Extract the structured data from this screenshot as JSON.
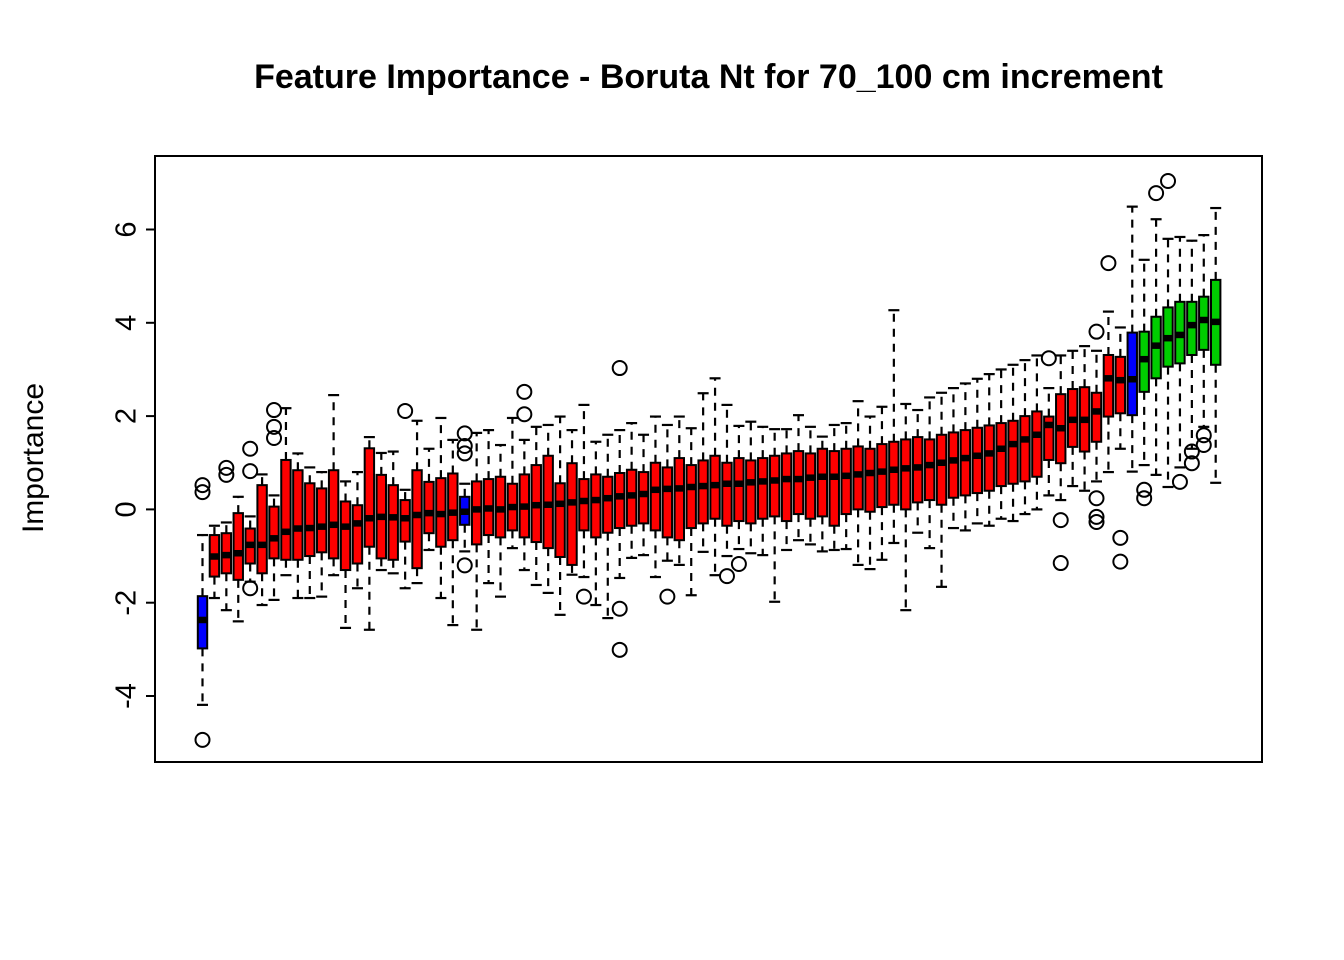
{
  "chart_data": {
    "type": "boxplot",
    "title": "Feature Importance - Boruta Nt for 70_100 cm increment",
    "ylabel": "Importance",
    "xlabel": "",
    "yticks": [
      -4,
      -2,
      0,
      2,
      4,
      6
    ],
    "ylim": [
      -5.4,
      7.55
    ],
    "grid": false,
    "legend": "none",
    "n_boxes": 86,
    "box_colors": {
      "red": "#fe0000",
      "blue": "#0000fe",
      "green": "#00cd00"
    },
    "frame_color": "#000000",
    "boxes": [
      {
        "c": "blue",
        "lo": -4.19,
        "q1": -2.98,
        "md": -2.37,
        "q3": -1.86,
        "hi": -0.55,
        "o": [
          0.52,
          0.37,
          -4.94
        ]
      },
      {
        "c": "red",
        "lo": -1.9,
        "q1": -1.44,
        "md": -1.01,
        "q3": -0.55,
        "hi": -0.35,
        "o": []
      },
      {
        "c": "red",
        "lo": -2.16,
        "q1": -1.37,
        "md": -0.98,
        "q3": -0.51,
        "hi": -0.28,
        "o": [
          0.89,
          0.74
        ]
      },
      {
        "c": "red",
        "lo": -2.4,
        "q1": -1.51,
        "md": -0.94,
        "q3": -0.08,
        "hi": 0.27,
        "o": []
      },
      {
        "c": "red",
        "lo": -1.55,
        "q1": -1.16,
        "md": -0.76,
        "q3": -0.41,
        "hi": -0.15,
        "o": [
          1.3,
          0.82,
          -1.69
        ]
      },
      {
        "c": "red",
        "lo": -2.05,
        "q1": -1.37,
        "md": -0.76,
        "q3": 0.52,
        "hi": 0.75,
        "o": []
      },
      {
        "c": "red",
        "lo": -1.94,
        "q1": -1.05,
        "md": -0.62,
        "q3": 0.06,
        "hi": 0.3,
        "o": [
          2.13,
          1.77,
          1.53
        ]
      },
      {
        "c": "red",
        "lo": -1.41,
        "q1": -1.08,
        "md": -0.48,
        "q3": 1.06,
        "hi": 2.17,
        "o": []
      },
      {
        "c": "red",
        "lo": -1.9,
        "q1": -1.08,
        "md": -0.41,
        "q3": 0.84,
        "hi": 1.2,
        "o": []
      },
      {
        "c": "red",
        "lo": -1.9,
        "q1": -1.0,
        "md": -0.4,
        "q3": 0.56,
        "hi": 0.9,
        "o": []
      },
      {
        "c": "red",
        "lo": -1.87,
        "q1": -0.92,
        "md": -0.37,
        "q3": 0.45,
        "hi": 0.8,
        "o": []
      },
      {
        "c": "red",
        "lo": -1.41,
        "q1": -1.05,
        "md": -0.33,
        "q3": 0.84,
        "hi": 2.45,
        "o": []
      },
      {
        "c": "red",
        "lo": -2.54,
        "q1": -1.3,
        "md": -0.37,
        "q3": 0.17,
        "hi": 0.6,
        "o": []
      },
      {
        "c": "red",
        "lo": -1.69,
        "q1": -1.16,
        "md": -0.3,
        "q3": 0.09,
        "hi": 0.8,
        "o": []
      },
      {
        "c": "red",
        "lo": -2.58,
        "q1": -0.8,
        "md": -0.19,
        "q3": 1.31,
        "hi": 1.55,
        "o": []
      },
      {
        "c": "red",
        "lo": -1.3,
        "q1": -1.05,
        "md": -0.16,
        "q3": 0.74,
        "hi": 1.21,
        "o": []
      },
      {
        "c": "red",
        "lo": -1.37,
        "q1": -1.08,
        "md": -0.17,
        "q3": 0.52,
        "hi": 1.24,
        "o": []
      },
      {
        "c": "red",
        "lo": -1.69,
        "q1": -0.69,
        "md": -0.19,
        "q3": 0.2,
        "hi": 0.42,
        "o": [
          2.11
        ]
      },
      {
        "c": "red",
        "lo": -1.58,
        "q1": -1.26,
        "md": -0.12,
        "q3": 0.84,
        "hi": 1.9,
        "o": []
      },
      {
        "c": "red",
        "lo": -0.87,
        "q1": -0.51,
        "md": -0.08,
        "q3": 0.59,
        "hi": 1.3,
        "o": []
      },
      {
        "c": "red",
        "lo": -1.9,
        "q1": -0.8,
        "md": -0.1,
        "q3": 0.67,
        "hi": 1.96,
        "o": []
      },
      {
        "c": "red",
        "lo": -2.48,
        "q1": -0.66,
        "md": -0.07,
        "q3": 0.77,
        "hi": 1.49,
        "o": []
      },
      {
        "c": "blue",
        "lo": -0.9,
        "q1": -0.33,
        "md": -0.05,
        "q3": 0.27,
        "hi": 0.55,
        "o": [
          1.63,
          1.36,
          1.2,
          -1.2
        ]
      },
      {
        "c": "red",
        "lo": -2.58,
        "q1": -0.75,
        "md": 0.0,
        "q3": 0.6,
        "hi": 1.64,
        "o": []
      },
      {
        "c": "red",
        "lo": -1.58,
        "q1": -0.55,
        "md": 0.02,
        "q3": 0.65,
        "hi": 1.7,
        "o": []
      },
      {
        "c": "red",
        "lo": -1.87,
        "q1": -0.6,
        "md": 0.0,
        "q3": 0.7,
        "hi": 1.38,
        "o": []
      },
      {
        "c": "red",
        "lo": -0.83,
        "q1": -0.45,
        "md": 0.05,
        "q3": 0.55,
        "hi": 1.96,
        "o": []
      },
      {
        "c": "red",
        "lo": -1.3,
        "q1": -0.6,
        "md": 0.06,
        "q3": 0.75,
        "hi": 1.49,
        "o": [
          2.52,
          2.04
        ]
      },
      {
        "c": "red",
        "lo": -1.62,
        "q1": -0.7,
        "md": 0.09,
        "q3": 0.95,
        "hi": 1.77,
        "o": []
      },
      {
        "c": "red",
        "lo": -1.79,
        "q1": -0.83,
        "md": 0.1,
        "q3": 1.15,
        "hi": 1.81,
        "o": []
      },
      {
        "c": "red",
        "lo": -2.26,
        "q1": -1.02,
        "md": 0.12,
        "q3": 0.56,
        "hi": 1.99,
        "o": []
      },
      {
        "c": "red",
        "lo": -1.4,
        "q1": -1.19,
        "md": 0.15,
        "q3": 0.99,
        "hi": 1.7,
        "o": []
      },
      {
        "c": "red",
        "lo": -1.45,
        "q1": -0.45,
        "md": 0.18,
        "q3": 0.65,
        "hi": 2.24,
        "o": [
          -1.87
        ]
      },
      {
        "c": "red",
        "lo": -2.05,
        "q1": -0.6,
        "md": 0.2,
        "q3": 0.75,
        "hi": 1.45,
        "o": []
      },
      {
        "c": "red",
        "lo": -2.33,
        "q1": -0.5,
        "md": 0.24,
        "q3": 0.7,
        "hi": 1.6,
        "o": []
      },
      {
        "c": "red",
        "lo": -1.47,
        "q1": -0.4,
        "md": 0.28,
        "q3": 0.78,
        "hi": 1.7,
        "o": [
          3.03,
          -2.13,
          -3.01
        ]
      },
      {
        "c": "red",
        "lo": -1.04,
        "q1": -0.35,
        "md": 0.3,
        "q3": 0.85,
        "hi": 1.85,
        "o": []
      },
      {
        "c": "red",
        "lo": -0.98,
        "q1": -0.3,
        "md": 0.33,
        "q3": 0.8,
        "hi": 1.6,
        "o": []
      },
      {
        "c": "red",
        "lo": -1.45,
        "q1": -0.45,
        "md": 0.42,
        "q3": 1.0,
        "hi": 1.99,
        "o": []
      },
      {
        "c": "red",
        "lo": -1.1,
        "q1": -0.6,
        "md": 0.44,
        "q3": 0.9,
        "hi": 1.81,
        "o": [
          -1.87
        ]
      },
      {
        "c": "red",
        "lo": -1.19,
        "q1": -0.66,
        "md": 0.45,
        "q3": 1.1,
        "hi": 1.99,
        "o": []
      },
      {
        "c": "red",
        "lo": -1.84,
        "q1": -0.4,
        "md": 0.48,
        "q3": 0.95,
        "hi": 1.74,
        "o": []
      },
      {
        "c": "red",
        "lo": -0.91,
        "q1": -0.3,
        "md": 0.5,
        "q3": 1.05,
        "hi": 2.49,
        "o": []
      },
      {
        "c": "red",
        "lo": -1.41,
        "q1": -0.2,
        "md": 0.52,
        "q3": 1.15,
        "hi": 2.81,
        "o": []
      },
      {
        "c": "red",
        "lo": -1.0,
        "q1": -0.35,
        "md": 0.55,
        "q3": 1.0,
        "hi": 2.24,
        "o": [
          -1.43
        ]
      },
      {
        "c": "red",
        "lo": -0.85,
        "q1": -0.25,
        "md": 0.55,
        "q3": 1.1,
        "hi": 1.79,
        "o": [
          -1.17
        ]
      },
      {
        "c": "red",
        "lo": -0.94,
        "q1": -0.3,
        "md": 0.58,
        "q3": 1.05,
        "hi": 1.88,
        "o": []
      },
      {
        "c": "red",
        "lo": -0.98,
        "q1": -0.2,
        "md": 0.6,
        "q3": 1.1,
        "hi": 1.77,
        "o": []
      },
      {
        "c": "red",
        "lo": -1.98,
        "q1": -0.15,
        "md": 0.62,
        "q3": 1.15,
        "hi": 1.72,
        "o": []
      },
      {
        "c": "red",
        "lo": -0.87,
        "q1": -0.25,
        "md": 0.65,
        "q3": 1.2,
        "hi": 1.72,
        "o": []
      },
      {
        "c": "red",
        "lo": -0.66,
        "q1": -0.1,
        "md": 0.65,
        "q3": 1.25,
        "hi": 2.02,
        "o": []
      },
      {
        "c": "red",
        "lo": -0.75,
        "q1": -0.2,
        "md": 0.68,
        "q3": 1.2,
        "hi": 1.77,
        "o": []
      },
      {
        "c": "red",
        "lo": -0.9,
        "q1": -0.15,
        "md": 0.7,
        "q3": 1.3,
        "hi": 1.56,
        "o": []
      },
      {
        "c": "red",
        "lo": -0.87,
        "q1": -0.35,
        "md": 0.7,
        "q3": 1.25,
        "hi": 1.81,
        "o": []
      },
      {
        "c": "red",
        "lo": -0.85,
        "q1": -0.1,
        "md": 0.72,
        "q3": 1.3,
        "hi": 1.85,
        "o": []
      },
      {
        "c": "red",
        "lo": -1.19,
        "q1": 0.0,
        "md": 0.75,
        "q3": 1.35,
        "hi": 2.32,
        "o": []
      },
      {
        "c": "red",
        "lo": -1.28,
        "q1": -0.05,
        "md": 0.78,
        "q3": 1.3,
        "hi": 1.99,
        "o": []
      },
      {
        "c": "red",
        "lo": -1.08,
        "q1": 0.05,
        "md": 0.81,
        "q3": 1.4,
        "hi": 2.2,
        "o": []
      },
      {
        "c": "red",
        "lo": -0.72,
        "q1": 0.1,
        "md": 0.85,
        "q3": 1.45,
        "hi": 4.27,
        "o": []
      },
      {
        "c": "red",
        "lo": -2.16,
        "q1": 0.0,
        "md": 0.88,
        "q3": 1.5,
        "hi": 2.26,
        "o": []
      },
      {
        "c": "red",
        "lo": -0.5,
        "q1": 0.15,
        "md": 0.9,
        "q3": 1.55,
        "hi": 2.13,
        "o": []
      },
      {
        "c": "red",
        "lo": -0.83,
        "q1": 0.2,
        "md": 0.95,
        "q3": 1.5,
        "hi": 2.4,
        "o": []
      },
      {
        "c": "red",
        "lo": -1.66,
        "q1": 0.1,
        "md": 1.0,
        "q3": 1.6,
        "hi": 2.5,
        "o": []
      },
      {
        "c": "red",
        "lo": -0.4,
        "q1": 0.25,
        "md": 1.05,
        "q3": 1.65,
        "hi": 2.6,
        "o": []
      },
      {
        "c": "red",
        "lo": -0.45,
        "q1": 0.3,
        "md": 1.1,
        "q3": 1.7,
        "hi": 2.7,
        "o": []
      },
      {
        "c": "red",
        "lo": -0.3,
        "q1": 0.35,
        "md": 1.15,
        "q3": 1.75,
        "hi": 2.8,
        "o": []
      },
      {
        "c": "red",
        "lo": -0.35,
        "q1": 0.4,
        "md": 1.2,
        "q3": 1.8,
        "hi": 2.9,
        "o": []
      },
      {
        "c": "red",
        "lo": -0.2,
        "q1": 0.5,
        "md": 1.3,
        "q3": 1.85,
        "hi": 3.0,
        "o": []
      },
      {
        "c": "red",
        "lo": -0.25,
        "q1": 0.55,
        "md": 1.4,
        "q3": 1.9,
        "hi": 3.1,
        "o": []
      },
      {
        "c": "red",
        "lo": -0.1,
        "q1": 0.6,
        "md": 1.5,
        "q3": 2.0,
        "hi": 3.2,
        "o": []
      },
      {
        "c": "red",
        "lo": 0.0,
        "q1": 0.7,
        "md": 1.6,
        "q3": 2.1,
        "hi": 3.3,
        "o": []
      },
      {
        "c": "red",
        "lo": 0.3,
        "q1": 1.06,
        "md": 1.81,
        "q3": 1.99,
        "hi": 2.6,
        "o": [
          3.24
        ]
      },
      {
        "c": "red",
        "lo": 0.2,
        "q1": 0.99,
        "md": 1.74,
        "q3": 2.47,
        "hi": 3.3,
        "o": [
          -0.23,
          -1.15
        ]
      },
      {
        "c": "red",
        "lo": 0.5,
        "q1": 1.34,
        "md": 1.92,
        "q3": 2.58,
        "hi": 3.4,
        "o": []
      },
      {
        "c": "red",
        "lo": 0.4,
        "q1": 1.24,
        "md": 1.92,
        "q3": 2.62,
        "hi": 3.5,
        "o": []
      },
      {
        "c": "red",
        "lo": 0.6,
        "q1": 1.45,
        "md": 2.1,
        "q3": 2.5,
        "hi": 3.4,
        "o": [
          3.81,
          0.24,
          -0.16,
          -0.27
        ]
      },
      {
        "c": "red",
        "lo": 0.8,
        "q1": 1.99,
        "md": 2.81,
        "q3": 3.31,
        "hi": 4.24,
        "o": [
          5.28
        ]
      },
      {
        "c": "red",
        "lo": 1.3,
        "q1": 2.06,
        "md": 2.77,
        "q3": 3.27,
        "hi": 3.9,
        "o": [
          -0.61,
          -1.12
        ]
      },
      {
        "c": "blue",
        "lo": 0.81,
        "q1": 2.02,
        "md": 2.79,
        "q3": 3.79,
        "hi": 6.49,
        "o": []
      },
      {
        "c": "green",
        "lo": 0.95,
        "q1": 2.52,
        "md": 3.22,
        "q3": 3.81,
        "hi": 5.35,
        "o": [
          0.42,
          0.24
        ]
      },
      {
        "c": "green",
        "lo": 0.74,
        "q1": 2.81,
        "md": 3.51,
        "q3": 4.13,
        "hi": 6.22,
        "o": [
          6.78
        ]
      },
      {
        "c": "green",
        "lo": 0.48,
        "q1": 3.06,
        "md": 3.67,
        "q3": 4.33,
        "hi": 5.8,
        "o": [
          7.04
        ]
      },
      {
        "c": "green",
        "lo": 0.9,
        "q1": 3.13,
        "md": 3.74,
        "q3": 4.45,
        "hi": 5.84,
        "o": [
          0.59
        ]
      },
      {
        "c": "green",
        "lo": 1.3,
        "q1": 3.31,
        "md": 3.95,
        "q3": 4.45,
        "hi": 5.76,
        "o": [
          1.24,
          0.99
        ]
      },
      {
        "c": "green",
        "lo": 1.77,
        "q1": 3.42,
        "md": 4.06,
        "q3": 4.56,
        "hi": 5.88,
        "o": [
          1.59,
          1.38
        ]
      },
      {
        "c": "green",
        "lo": 0.57,
        "q1": 3.1,
        "md": 4.02,
        "q3": 4.92,
        "hi": 6.46,
        "o": []
      }
    ]
  }
}
